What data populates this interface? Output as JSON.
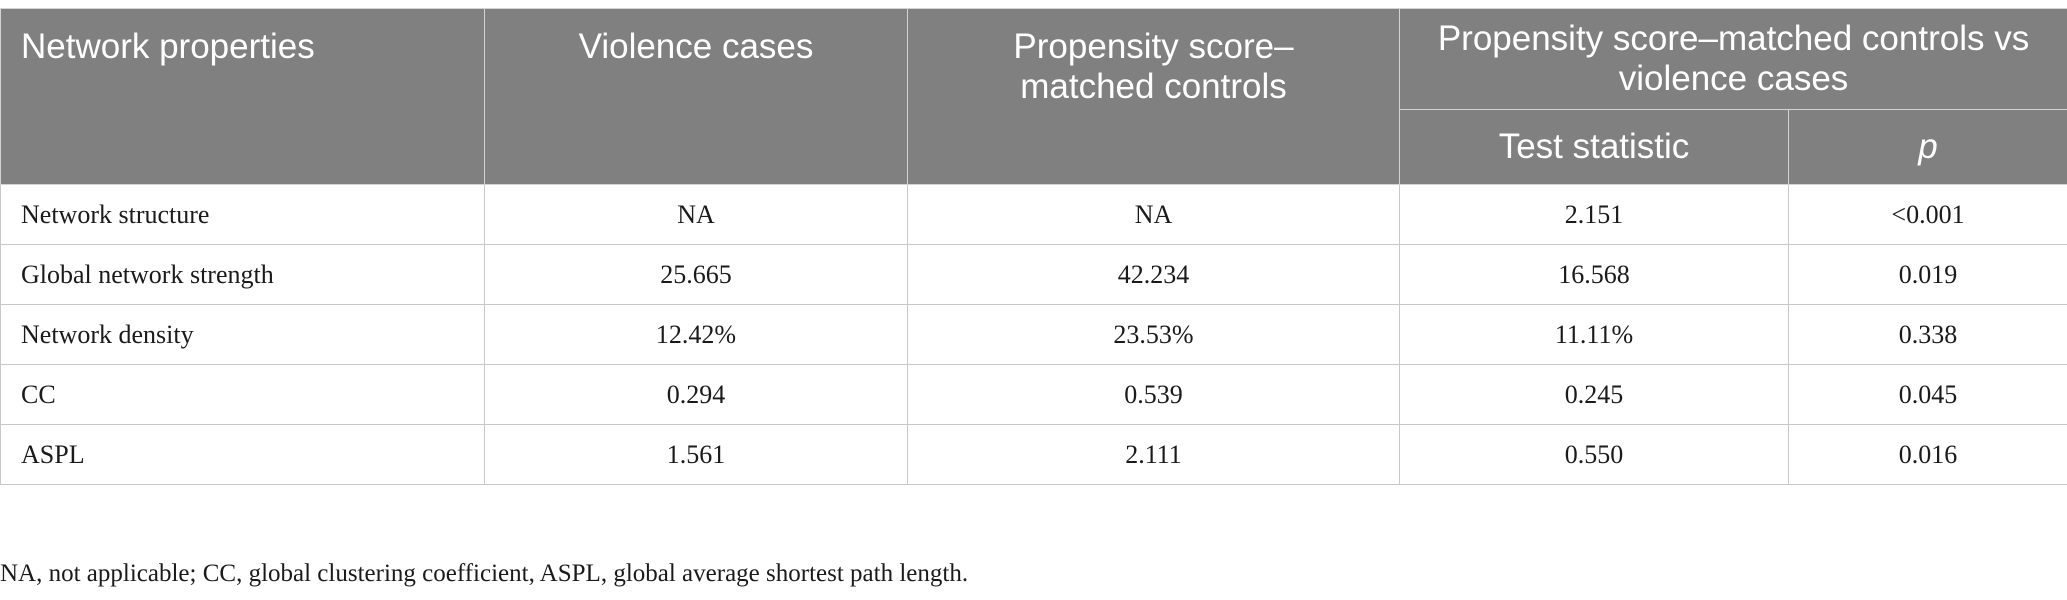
{
  "table": {
    "headers": {
      "col1": "Network properties",
      "col2": "Violence cases",
      "col3": "Propensity score–matched controls",
      "col4_group": "Propensity score–matched controls vs violence cases",
      "col4_sub": "Test statistic",
      "col5_sub": "p"
    },
    "rows": [
      {
        "label": "Network structure",
        "violence": "NA",
        "controls": "NA",
        "test": "2.151",
        "p": "<0.001"
      },
      {
        "label": "Global network strength",
        "violence": "25.665",
        "controls": "42.234",
        "test": "16.568",
        "p": "0.019"
      },
      {
        "label": "Network density",
        "violence": "12.42%",
        "controls": "23.53%",
        "test": "11.11%",
        "p": "0.338"
      },
      {
        "label": "CC",
        "violence": "0.294",
        "controls": "0.539",
        "test": "0.245",
        "p": "0.045"
      },
      {
        "label": "ASPL",
        "violence": "1.561",
        "controls": "2.111",
        "test": "0.550",
        "p": "0.016"
      }
    ]
  },
  "footnote": "NA, not applicable; CC, global clustering coefficient, ASPL, global average shortest path length.",
  "colors": {
    "header_bg": "#808080",
    "header_text": "#ffffff",
    "border": "#c8c8c8"
  }
}
